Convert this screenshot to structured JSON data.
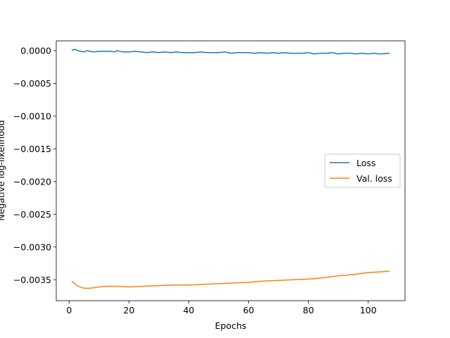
{
  "chart_data": {
    "type": "line",
    "title": "",
    "xlabel": "Epochs",
    "ylabel": "Negative log-likelihood",
    "xlim": [
      -4.3,
      112.3
    ],
    "ylim": [
      -0.00382,
      0.00015
    ],
    "xticks": [
      0,
      20,
      40,
      60,
      80,
      100
    ],
    "xtick_labels": [
      "0",
      "20",
      "40",
      "60",
      "80",
      "100"
    ],
    "yticks": [
      0.0,
      -0.0005,
      -0.001,
      -0.0015,
      -0.002,
      -0.0025,
      -0.003,
      -0.0035
    ],
    "ytick_labels": [
      "0.0000",
      "−0.0005",
      "−0.0010",
      "−0.0015",
      "−0.0020",
      "−0.0025",
      "−0.0030",
      "−0.0035"
    ],
    "grid": false,
    "legend": {
      "placement": "center-right"
    },
    "colors": {
      "loss": "#1f77b4",
      "val_loss": "#ff7f0e"
    },
    "series": [
      {
        "name": "Loss",
        "color": "#1f77b4",
        "x": [
          1,
          2,
          3,
          4,
          5,
          6,
          7,
          8,
          10,
          12,
          14,
          15,
          16,
          18,
          20,
          22,
          24,
          26,
          28,
          30,
          32,
          34,
          36,
          38,
          40,
          42,
          44,
          46,
          48,
          50,
          52,
          54,
          56,
          58,
          60,
          62,
          64,
          66,
          68,
          70,
          72,
          74,
          76,
          78,
          80,
          82,
          84,
          86,
          88,
          90,
          92,
          94,
          96,
          98,
          100,
          102,
          104,
          107
        ],
        "y": [
          1e-05,
          2e-05,
          0.0,
          -1e-05,
          -2e-05,
          0.0,
          -1e-05,
          -2e-05,
          -1e-05,
          -1e-05,
          -1e-05,
          -2e-05,
          0.0,
          -2e-05,
          -2e-05,
          -1e-05,
          -2e-05,
          -3e-05,
          -2e-05,
          -3e-05,
          -2e-05,
          -3e-05,
          -2e-05,
          -3e-05,
          -3e-05,
          -3e-05,
          -2e-05,
          -3e-05,
          -3e-05,
          -3e-05,
          -2e-05,
          -4e-05,
          -3e-05,
          -3e-05,
          -3e-05,
          -4e-05,
          -3e-05,
          -4e-05,
          -3e-05,
          -4e-05,
          -3e-05,
          -4e-05,
          -4e-05,
          -4e-05,
          -3e-05,
          -5e-05,
          -4e-05,
          -4e-05,
          -3e-05,
          -5e-05,
          -4e-05,
          -4e-05,
          -5e-05,
          -4e-05,
          -5e-05,
          -4e-05,
          -5e-05,
          -4e-05
        ]
      },
      {
        "name": "Val. loss",
        "color": "#ff7f0e",
        "x": [
          1,
          3,
          5,
          7,
          10,
          13,
          16,
          20,
          25,
          30,
          35,
          40,
          45,
          50,
          55,
          60,
          65,
          70,
          75,
          80,
          85,
          90,
          95,
          100,
          104,
          107
        ],
        "y": [
          -0.00353,
          -0.0036,
          -0.00363,
          -0.00363,
          -0.00361,
          -0.0036,
          -0.0036,
          -0.00361,
          -0.0036,
          -0.00359,
          -0.00358,
          -0.00358,
          -0.00357,
          -0.00356,
          -0.00355,
          -0.00354,
          -0.00352,
          -0.00351,
          -0.0035,
          -0.00349,
          -0.00347,
          -0.00344,
          -0.00342,
          -0.00339,
          -0.00338,
          -0.00337
        ]
      }
    ]
  }
}
